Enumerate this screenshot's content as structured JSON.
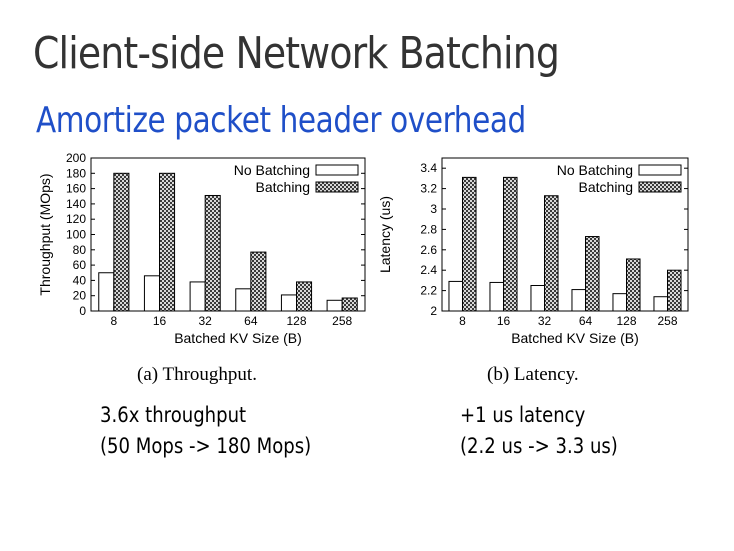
{
  "slide": {
    "title": "Client-side Network Batching",
    "subtitle": "Amortize packet header overhead"
  },
  "chart_data": [
    {
      "type": "bar",
      "categories": [
        "8",
        "16",
        "32",
        "64",
        "128",
        "258"
      ],
      "series": [
        {
          "name": "No Batching",
          "values": [
            50,
            46,
            38,
            29,
            21,
            14
          ]
        },
        {
          "name": "Batching",
          "values": [
            180,
            180,
            151,
            77,
            38,
            17
          ]
        }
      ],
      "xlabel": "Batched KV Size (B)",
      "ylabel": "Throughput (MOps)",
      "ylim": [
        0,
        200
      ],
      "yticks": [
        "0",
        "20",
        "40",
        "60",
        "80",
        "100",
        "120",
        "140",
        "160",
        "180",
        "200"
      ],
      "legend": "top-right",
      "caption": "(a) Throughput."
    },
    {
      "type": "bar",
      "categories": [
        "8",
        "16",
        "32",
        "64",
        "128",
        "258"
      ],
      "series": [
        {
          "name": "No Batching",
          "values": [
            2.29,
            2.28,
            2.25,
            2.21,
            2.17,
            2.14
          ]
        },
        {
          "name": "Batching",
          "values": [
            3.31,
            3.31,
            3.13,
            2.73,
            2.51,
            2.4
          ]
        }
      ],
      "xlabel": "Batched KV Size (B)",
      "ylabel": "Latency (us)",
      "ylim": [
        2,
        3.5
      ],
      "yticks": [
        "2",
        "2.2",
        "2.4",
        "2.6",
        "2.8",
        "3",
        "3.2",
        "3.4"
      ],
      "legend": "top-right",
      "caption": "(b) Latency."
    }
  ],
  "callouts": {
    "throughput": {
      "line1": "3.6x throughput",
      "line2": "(50 Mops -> 180 Mops)"
    },
    "latency": {
      "line1": "+1 us latency",
      "line2": "(2.2 us -> 3.3 us)"
    }
  }
}
